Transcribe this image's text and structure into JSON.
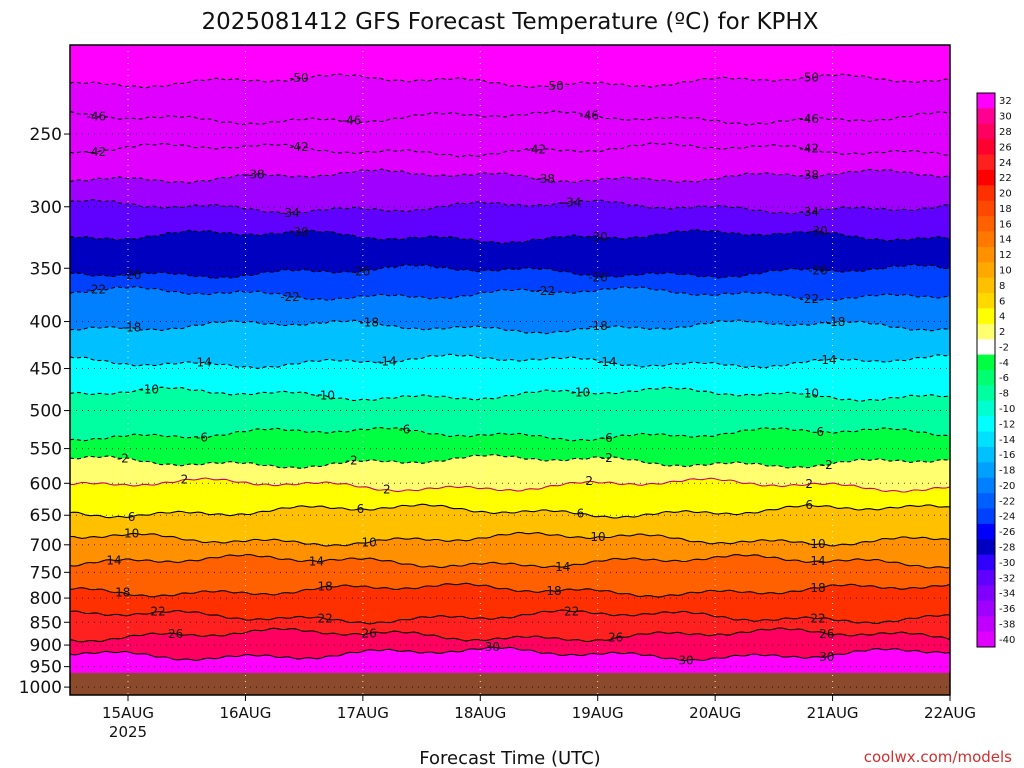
{
  "chart_data": {
    "type": "heatmap",
    "title": "2025081412 GFS Forecast Temperature (ºC) for KPHX",
    "xlabel": "Forecast Time (UTC)",
    "ylabel": "",
    "credit": "coolwx.com/models",
    "x_ticks": [
      "15AUG",
      "16AUG",
      "17AUG",
      "18AUG",
      "19AUG",
      "20AUG",
      "21AUG",
      "22AUG"
    ],
    "x_year_label": "2025",
    "y_ticks": [
      "250",
      "300",
      "350",
      "400",
      "450",
      "500",
      "550",
      "600",
      "650",
      "700",
      "750",
      "800",
      "850",
      "900",
      "950",
      "1000"
    ],
    "y_units": "hPa",
    "y_scale": "log",
    "ylim": [
      200,
      1020
    ],
    "surface_pressure_hPa": 965,
    "colorbar_labels": [
      "32",
      "30",
      "28",
      "26",
      "24",
      "22",
      "20",
      "18",
      "16",
      "14",
      "12",
      "10",
      "8",
      "6",
      "4",
      "2",
      "-2",
      "-4",
      "-6",
      "-8",
      "-10",
      "-12",
      "-14",
      "-16",
      "-18",
      "-20",
      "-22",
      "-24",
      "-26",
      "-28",
      "-30",
      "-32",
      "-34",
      "-36",
      "-38",
      "-40"
    ],
    "colorbar_colors": [
      "#ff00ff",
      "#ff0090",
      "#ff0060",
      "#ff0030",
      "#ff2020",
      "#ff0000",
      "#ff3000",
      "#ff4800",
      "#ff6000",
      "#ff7800",
      "#ff9000",
      "#ffa800",
      "#ffc000",
      "#ffd800",
      "#ffff00",
      "#ffff70",
      "#ffffff",
      "#00ff40",
      "#00ff70",
      "#00ffa0",
      "#00ffd0",
      "#00ffff",
      "#00e0ff",
      "#00c0ff",
      "#00a0ff",
      "#0080ff",
      "#0060ff",
      "#0040ff",
      "#0000ff",
      "#0000c0",
      "#3000ff",
      "#6000ff",
      "#8000ff",
      "#a000ff",
      "#c000ff",
      "#e000ff"
    ],
    "isotherms": [
      {
        "t": 30,
        "p": 920,
        "labels": [
          0.48,
          0.7,
          0.86
        ]
      },
      {
        "t": 26,
        "p": 878,
        "labels": [
          0.12,
          0.34,
          0.62,
          0.86
        ]
      },
      {
        "t": 22,
        "p": 838,
        "labels": [
          0.1,
          0.29,
          0.57,
          0.85
        ]
      },
      {
        "t": 18,
        "p": 784,
        "labels": [
          0.06,
          0.29,
          0.55,
          0.85
        ]
      },
      {
        "t": 14,
        "p": 730,
        "labels": [
          0.05,
          0.28,
          0.56,
          0.85
        ]
      },
      {
        "t": 10,
        "p": 690,
        "labels": [
          0.07,
          0.34,
          0.6,
          0.85
        ]
      },
      {
        "t": 6,
        "p": 643,
        "labels": [
          0.07,
          0.33,
          0.58,
          0.84
        ]
      },
      {
        "t": 2,
        "p": 603,
        "labels": [
          0.13,
          0.36,
          0.59,
          0.84
        ]
      },
      {
        "t": -2,
        "p": 568,
        "labels": [
          0.06,
          0.32,
          0.61,
          0.86
        ]
      },
      {
        "t": -6,
        "p": 530,
        "labels": [
          0.15,
          0.38,
          0.61,
          0.85
        ]
      },
      {
        "t": -10,
        "p": 480,
        "labels": [
          0.09,
          0.29,
          0.58,
          0.84
        ]
      },
      {
        "t": -14,
        "p": 442,
        "labels": [
          0.15,
          0.36,
          0.61,
          0.86
        ]
      },
      {
        "t": -18,
        "p": 405,
        "labels": [
          0.07,
          0.34,
          0.6,
          0.87
        ]
      },
      {
        "t": -22,
        "p": 373,
        "labels": [
          0.03,
          0.25,
          0.54,
          0.84
        ]
      },
      {
        "t": -26,
        "p": 353,
        "labels": [
          0.07,
          0.33,
          0.6,
          0.85
        ]
      },
      {
        "t": -30,
        "p": 323,
        "labels": [
          0.26,
          0.6,
          0.85
        ]
      },
      {
        "t": -34,
        "p": 300,
        "labels": [
          0.25,
          0.57,
          0.84
        ]
      },
      {
        "t": -38,
        "p": 278,
        "labels": [
          0.21,
          0.54,
          0.84
        ]
      },
      {
        "t": -42,
        "p": 260,
        "labels": [
          0.03,
          0.26,
          0.53,
          0.84
        ]
      },
      {
        "t": -46,
        "p": 240,
        "labels": [
          0.03,
          0.32,
          0.59,
          0.84
        ]
      },
      {
        "t": -50,
        "p": 219,
        "labels": [
          0.26,
          0.55,
          0.84
        ]
      }
    ],
    "grid": true
  }
}
